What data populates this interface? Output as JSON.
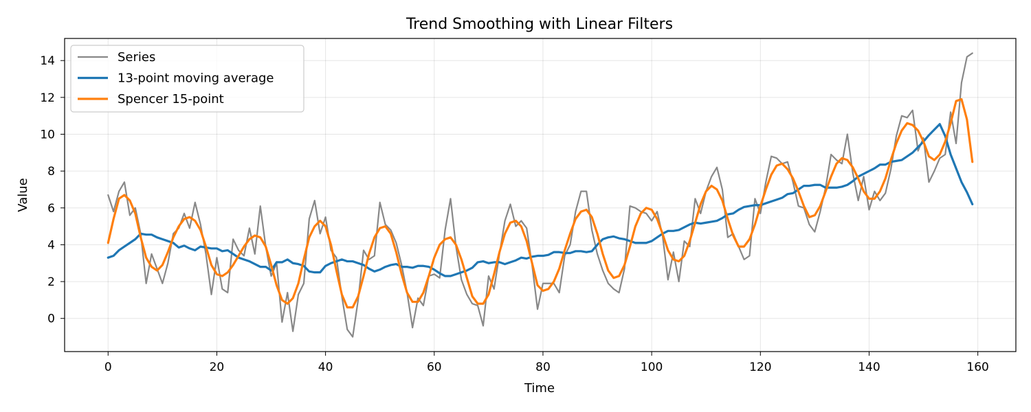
{
  "chart_data": {
    "type": "line",
    "title": "Trend Smoothing with Linear Filters",
    "xlabel": "Time",
    "ylabel": "Value",
    "xlim": [
      -8,
      167
    ],
    "ylim": [
      -1.8,
      15.2
    ],
    "xticks": [
      0,
      20,
      40,
      60,
      80,
      100,
      120,
      140,
      160
    ],
    "yticks": [
      0,
      2,
      4,
      6,
      8,
      10,
      12,
      14
    ],
    "grid": true,
    "legend": "top-left",
    "x": [
      0,
      1,
      2,
      3,
      4,
      5,
      6,
      7,
      8,
      9,
      10,
      11,
      12,
      13,
      14,
      15,
      16,
      17,
      18,
      19,
      20,
      21,
      22,
      23,
      24,
      25,
      26,
      27,
      28,
      29,
      30,
      31,
      32,
      33,
      34,
      35,
      36,
      37,
      38,
      39,
      40,
      41,
      42,
      43,
      44,
      45,
      46,
      47,
      48,
      49,
      50,
      51,
      52,
      53,
      54,
      55,
      56,
      57,
      58,
      59,
      60,
      61,
      62,
      63,
      64,
      65,
      66,
      67,
      68,
      69,
      70,
      71,
      72,
      73,
      74,
      75,
      76,
      77,
      78,
      79,
      80,
      81,
      82,
      83,
      84,
      85,
      86,
      87,
      88,
      89,
      90,
      91,
      92,
      93,
      94,
      95,
      96,
      97,
      98,
      99,
      100,
      101,
      102,
      103,
      104,
      105,
      106,
      107,
      108,
      109,
      110,
      111,
      112,
      113,
      114,
      115,
      116,
      117,
      118,
      119,
      120,
      121,
      122,
      123,
      124,
      125,
      126,
      127,
      128,
      129,
      130,
      131,
      132,
      133,
      134,
      135,
      136,
      137,
      138,
      139,
      140,
      141,
      142,
      143,
      144,
      145,
      146,
      147,
      148,
      149,
      150,
      151,
      152,
      153,
      154,
      155,
      156,
      157,
      158,
      159
    ],
    "series": [
      {
        "name": "Series",
        "color": "#888888",
        "width": 2.2,
        "values": [
          6.7,
          5.8,
          6.9,
          7.4,
          5.6,
          6.0,
          4.6,
          1.9,
          3.5,
          2.7,
          1.9,
          3.0,
          4.6,
          4.9,
          5.7,
          4.9,
          6.3,
          5.1,
          3.5,
          1.3,
          3.3,
          1.6,
          1.4,
          4.3,
          3.7,
          3.4,
          4.9,
          3.5,
          6.1,
          3.9,
          2.3,
          3.0,
          -0.2,
          1.4,
          -0.7,
          1.3,
          1.9,
          5.4,
          6.4,
          4.6,
          5.5,
          3.7,
          3.3,
          1.2,
          -0.6,
          -1.0,
          1.0,
          3.7,
          3.2,
          3.4,
          6.3,
          5.1,
          4.8,
          4.1,
          2.9,
          1.4,
          -0.5,
          1.1,
          0.7,
          2.3,
          2.4,
          2.2,
          4.8,
          6.5,
          3.9,
          2.1,
          1.3,
          0.8,
          0.7,
          -0.4,
          2.3,
          1.6,
          3.5,
          5.3,
          6.2,
          5.0,
          5.3,
          4.9,
          2.9,
          0.5,
          1.9,
          1.9,
          1.9,
          1.4,
          3.4,
          4.0,
          5.8,
          6.9,
          6.9,
          4.8,
          3.5,
          2.6,
          1.9,
          1.6,
          1.4,
          2.7,
          6.1,
          6.0,
          5.8,
          5.7,
          5.3,
          5.8,
          4.5,
          2.1,
          3.6,
          2.0,
          4.2,
          3.9,
          6.5,
          5.7,
          6.9,
          7.7,
          8.2,
          7.0,
          4.4,
          4.6,
          3.9,
          3.2,
          3.4,
          6.5,
          5.7,
          7.4,
          8.8,
          8.7,
          8.4,
          8.5,
          7.4,
          6.1,
          6.0,
          5.1,
          4.7,
          5.8,
          7.1,
          8.9,
          8.6,
          8.4,
          10.0,
          7.9,
          6.4,
          7.7,
          5.9,
          6.9,
          6.4,
          6.8,
          8.1,
          9.9,
          11.0,
          10.9,
          11.3,
          9.1,
          9.8,
          7.4,
          8.0,
          8.7,
          8.9,
          11.2,
          9.5,
          12.8,
          14.2,
          14.4
        ]
      },
      {
        "name": "13-point moving average",
        "color": "#1f77b4",
        "width": 3.2,
        "values": [
          3.3,
          3.4,
          3.7,
          3.9,
          4.1,
          4.3,
          4.6,
          4.55,
          4.55,
          4.4,
          4.3,
          4.2,
          4.1,
          3.85,
          3.95,
          3.8,
          3.7,
          3.9,
          3.85,
          3.8,
          3.8,
          3.65,
          3.7,
          3.5,
          3.3,
          3.2,
          3.1,
          2.95,
          2.8,
          2.8,
          2.6,
          3.05,
          3.05,
          3.2,
          3.0,
          2.95,
          2.85,
          2.55,
          2.5,
          2.5,
          2.85,
          3.0,
          3.1,
          3.2,
          3.1,
          3.1,
          3.0,
          2.9,
          2.7,
          2.55,
          2.65,
          2.8,
          2.9,
          2.95,
          2.8,
          2.8,
          2.75,
          2.85,
          2.85,
          2.8,
          2.65,
          2.45,
          2.3,
          2.3,
          2.4,
          2.5,
          2.6,
          2.75,
          3.05,
          3.1,
          3.0,
          3.05,
          3.05,
          2.95,
          3.05,
          3.15,
          3.3,
          3.25,
          3.35,
          3.4,
          3.4,
          3.45,
          3.6,
          3.6,
          3.55,
          3.55,
          3.65,
          3.65,
          3.6,
          3.65,
          4.0,
          4.3,
          4.4,
          4.45,
          4.35,
          4.3,
          4.2,
          4.1,
          4.1,
          4.1,
          4.2,
          4.4,
          4.6,
          4.75,
          4.75,
          4.8,
          4.95,
          5.1,
          5.2,
          5.15,
          5.2,
          5.25,
          5.3,
          5.45,
          5.65,
          5.7,
          5.9,
          6.05,
          6.1,
          6.15,
          6.15,
          6.25,
          6.35,
          6.45,
          6.55,
          6.75,
          6.8,
          7.0,
          7.2,
          7.2,
          7.25,
          7.25,
          7.1,
          7.1,
          7.1,
          7.15,
          7.25,
          7.45,
          7.7,
          7.85,
          8.0,
          8.15,
          8.35,
          8.35,
          8.5,
          8.55,
          8.6,
          8.8,
          9.0,
          9.3,
          9.6,
          9.95,
          10.25,
          10.55,
          9.9,
          8.9,
          8.15,
          7.4,
          6.85,
          6.2
        ]
      },
      {
        "name": "Spencer 15-point",
        "color": "#ff7f0e",
        "width": 3.2,
        "values": [
          4.1,
          5.4,
          6.5,
          6.7,
          6.4,
          5.7,
          4.4,
          3.3,
          2.8,
          2.6,
          2.9,
          3.6,
          4.4,
          5.0,
          5.4,
          5.5,
          5.3,
          4.8,
          3.9,
          2.9,
          2.4,
          2.3,
          2.5,
          2.9,
          3.4,
          3.9,
          4.3,
          4.5,
          4.4,
          3.9,
          2.9,
          1.8,
          1.0,
          0.8,
          1.1,
          1.9,
          3.2,
          4.4,
          5.0,
          5.3,
          5.0,
          4.0,
          2.6,
          1.3,
          0.6,
          0.6,
          1.2,
          2.3,
          3.5,
          4.4,
          4.9,
          5.0,
          4.6,
          3.6,
          2.4,
          1.4,
          0.9,
          0.9,
          1.4,
          2.3,
          3.3,
          4.0,
          4.3,
          4.4,
          4.0,
          3.2,
          2.2,
          1.2,
          0.8,
          0.8,
          1.3,
          2.4,
          3.6,
          4.6,
          5.2,
          5.3,
          5.0,
          4.2,
          3.0,
          1.8,
          1.5,
          1.6,
          2.0,
          2.7,
          3.7,
          4.6,
          5.4,
          5.8,
          5.9,
          5.5,
          4.6,
          3.5,
          2.6,
          2.2,
          2.3,
          2.9,
          3.9,
          5.0,
          5.7,
          6.0,
          5.9,
          5.4,
          4.6,
          3.7,
          3.2,
          3.1,
          3.4,
          4.2,
          5.2,
          6.2,
          6.9,
          7.2,
          7.0,
          6.4,
          5.4,
          4.5,
          3.9,
          3.9,
          4.3,
          5.1,
          6.1,
          7.0,
          7.8,
          8.3,
          8.4,
          8.1,
          7.6,
          6.9,
          6.1,
          5.5,
          5.6,
          6.1,
          6.9,
          7.7,
          8.4,
          8.7,
          8.6,
          8.2,
          7.6,
          6.9,
          6.5,
          6.5,
          6.9,
          7.6,
          8.6,
          9.5,
          10.2,
          10.6,
          10.5,
          10.2,
          9.6,
          8.8,
          8.6,
          8.9,
          9.6,
          10.6,
          11.8,
          11.9,
          10.8,
          8.5
        ]
      }
    ]
  }
}
